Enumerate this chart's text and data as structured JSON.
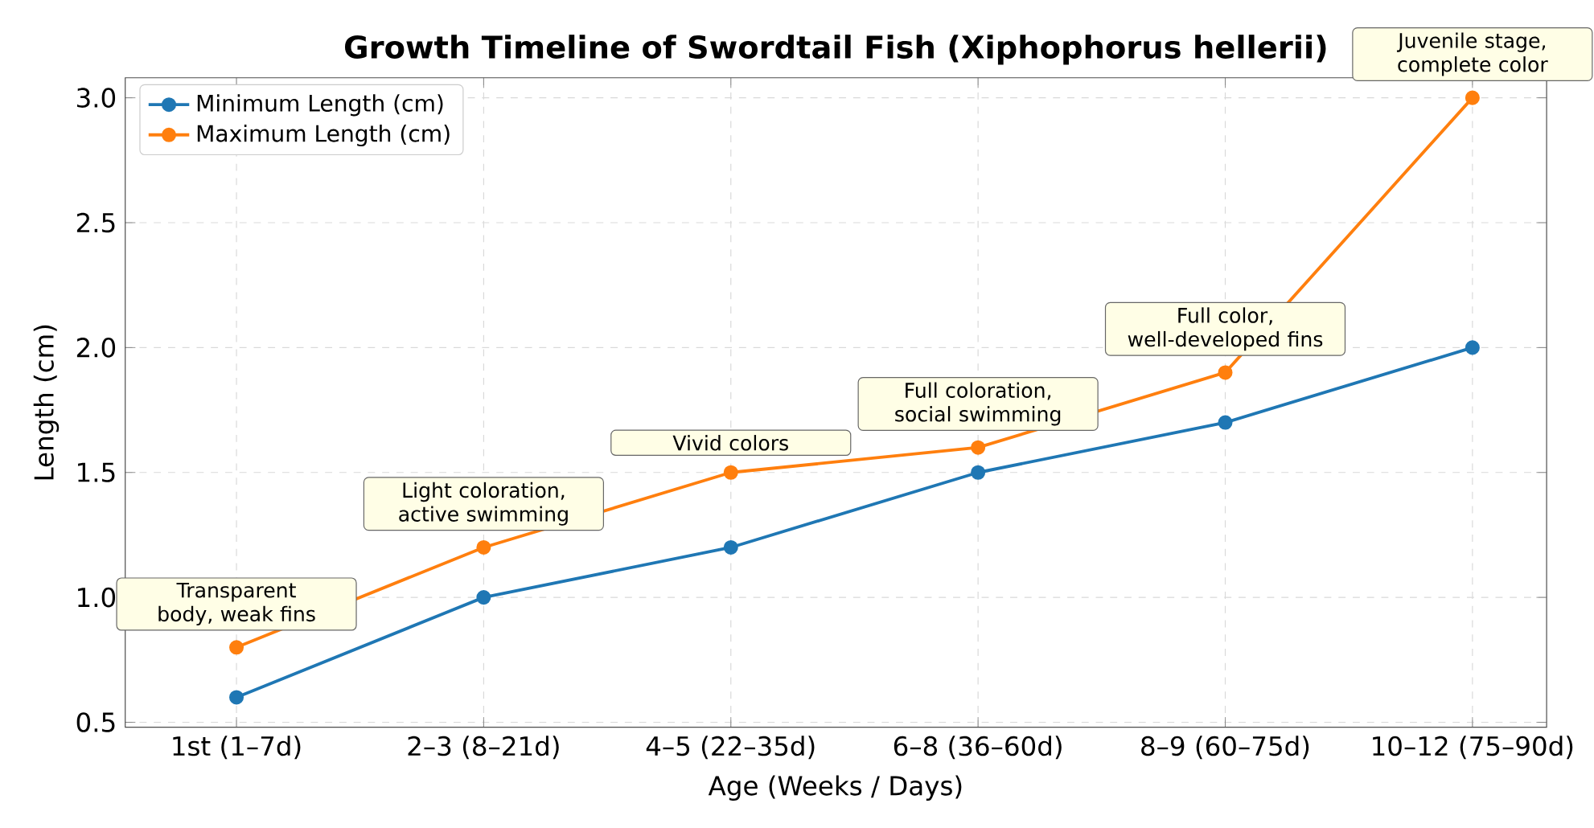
{
  "chart_data": {
    "type": "line",
    "title": "Growth Timeline of Swordtail Fish (Xiphophorus hellerii)",
    "xlabel": "Age (Weeks / Days)",
    "ylabel": "Length (cm)",
    "categories": [
      "1st (1–7d)",
      "2–3 (8–21d)",
      "4–5 (22–35d)",
      "6–8 (36–60d)",
      "8–9 (60–75d)",
      "10–12 (75–90d)"
    ],
    "series": [
      {
        "name": "Minimum Length (cm)",
        "color": "#1f77b4",
        "values": [
          0.6,
          1.0,
          1.2,
          1.5,
          1.7,
          2.0
        ]
      },
      {
        "name": "Maximum Length (cm)",
        "color": "#ff7f0e",
        "values": [
          0.8,
          1.2,
          1.5,
          1.6,
          1.9,
          3.0
        ]
      }
    ],
    "ylim": [
      0.48,
      3.08
    ],
    "yticks": [
      0.5,
      {
        "value": 1,
        "label": "1.0"
      },
      1.5,
      {
        "value": 2,
        "label": "2.0"
      },
      2.5,
      {
        "value": 3,
        "label": "3.0"
      }
    ],
    "grid": true,
    "legend": "top left",
    "marker": "circle",
    "line_style": "solid",
    "annotations": [
      {
        "text": "Transparent body, weak fins",
        "x": "1st (1–7d)",
        "y": 0.8
      },
      {
        "text": "Light coloration, active swimming",
        "x": "2–3 (8–21d)",
        "y": 1.2
      },
      {
        "text": "Vivid colors",
        "x": "4–5 (22–35d)",
        "y": 1.5
      },
      {
        "text": "Full coloration, social swimming",
        "x": "6–8 (36–60d)",
        "y": 1.6
      },
      {
        "text": "Full color, well-developed fins",
        "x": "8–9 (60–75d)",
        "y": 1.9
      },
      {
        "text": "Juvenile stage, complete color",
        "x": "10–12 (75–90d)",
        "y": 3.0
      }
    ]
  }
}
